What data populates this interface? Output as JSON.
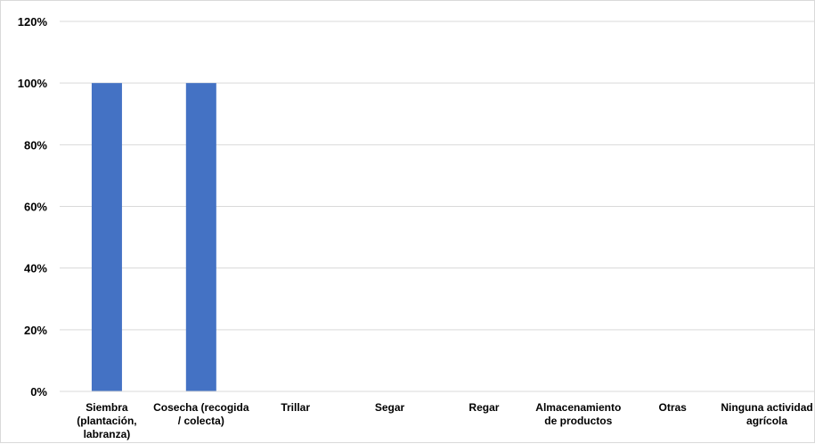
{
  "chart_data": {
    "type": "bar",
    "categories": [
      [
        "Siembra",
        "(plantación,",
        "labranza)"
      ],
      [
        "Cosecha (recogida",
        "/ colecta)"
      ],
      [
        "Trillar"
      ],
      [
        "Segar"
      ],
      [
        "Regar"
      ],
      [
        "Almacenamiento",
        "de productos"
      ],
      [
        "Otras"
      ],
      [
        "Ninguna actividad",
        "agrícola"
      ]
    ],
    "values": [
      100,
      100,
      0,
      0,
      0,
      0,
      0,
      0
    ],
    "ylim": [
      0,
      120
    ],
    "yticks": [
      0,
      20,
      40,
      60,
      80,
      100,
      120
    ],
    "ytick_format": "%",
    "grid": true,
    "legend": "none",
    "colors": {
      "bar": "#4472c4",
      "grid": "#d9d9d9",
      "axis": "#d9d9d9"
    }
  }
}
